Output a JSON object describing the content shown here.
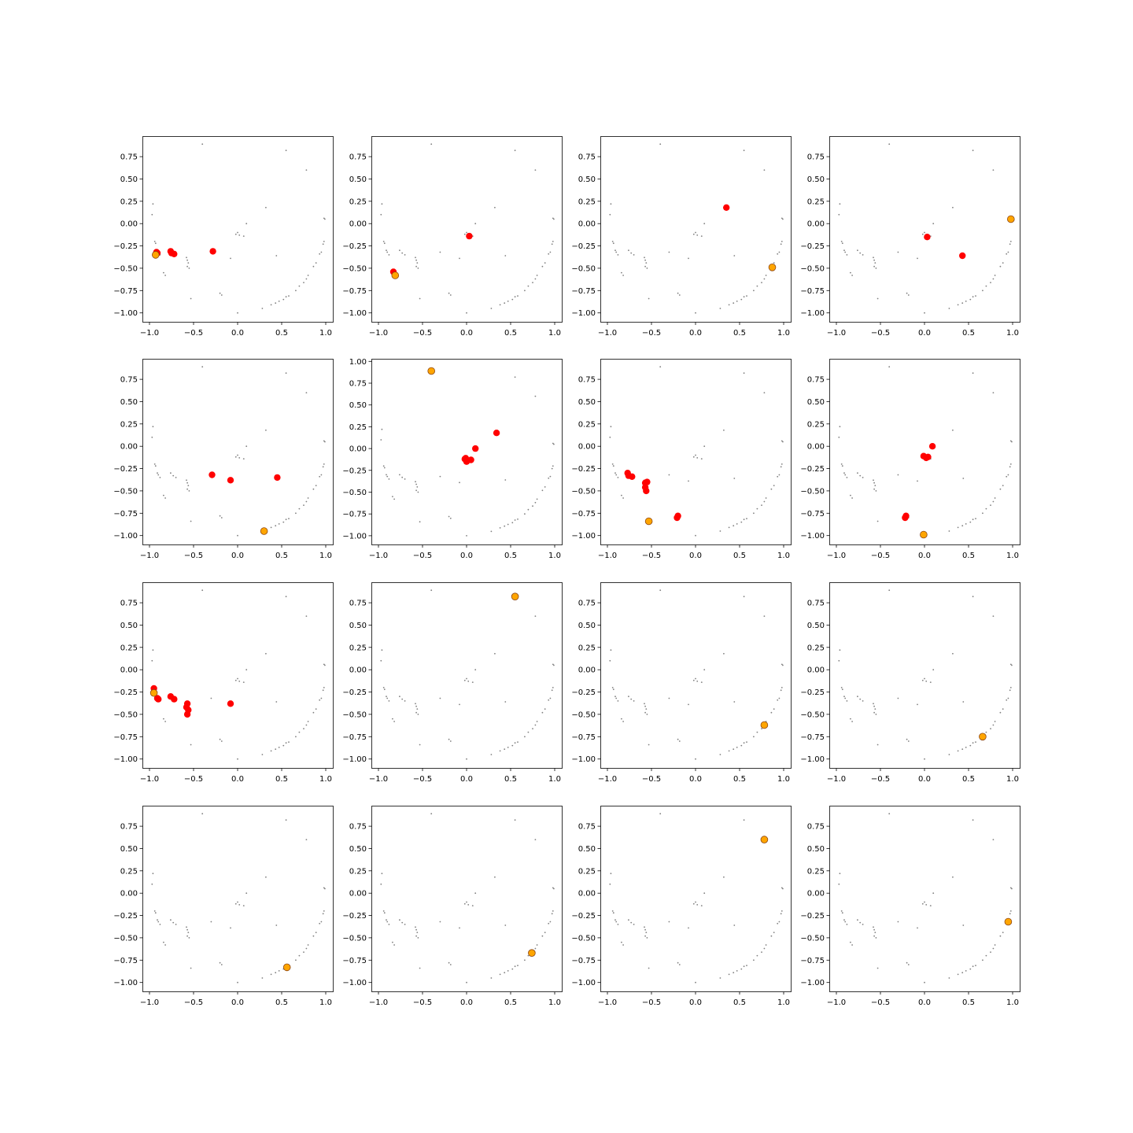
{
  "chart_data": {
    "type": "scatter",
    "grid": false,
    "xlim": [
      -1.08,
      1.08
    ],
    "xticks": [
      {
        "value": -1.0,
        "label": "−1.0"
      },
      {
        "value": -0.5,
        "label": "−0.5"
      },
      {
        "value": 0.0,
        "label": "0.0"
      },
      {
        "value": 0.5,
        "label": "0.5"
      },
      {
        "value": 1.0,
        "label": "1.0"
      }
    ],
    "yticks": [
      {
        "value": -1.0,
        "label": "−1.00"
      },
      {
        "value": -0.75,
        "label": "−0.75"
      },
      {
        "value": -0.5,
        "label": "−0.50"
      },
      {
        "value": -0.25,
        "label": "−0.25"
      },
      {
        "value": 0.0,
        "label": "0.00"
      },
      {
        "value": 0.25,
        "label": "0.25"
      },
      {
        "value": 0.5,
        "label": "0.50"
      },
      {
        "value": 0.75,
        "label": "0.75"
      },
      {
        "value": 1.0,
        "label": "1.00"
      }
    ],
    "colors": {
      "background_points": "#555555",
      "highlight": "#ff0000",
      "target": "#ffa500",
      "target_edge": "#8b4513"
    },
    "background_points": [
      [
        -0.4,
        0.89
      ],
      [
        0.55,
        0.82
      ],
      [
        0.78,
        0.6
      ],
      [
        0.99,
        0.05
      ],
      [
        0.98,
        0.06
      ],
      [
        -0.96,
        0.22
      ],
      [
        -0.97,
        0.1
      ],
      [
        0.32,
        0.18
      ],
      [
        0.1,
        0.0
      ],
      [
        0.0,
        -0.1
      ],
      [
        0.02,
        -0.13
      ],
      [
        -0.02,
        -0.12
      ],
      [
        0.07,
        -0.14
      ],
      [
        -0.3,
        -0.32
      ],
      [
        -0.08,
        -0.39
      ],
      [
        0.44,
        -0.36
      ],
      [
        -0.94,
        -0.2
      ],
      [
        -0.93,
        -0.22
      ],
      [
        -0.91,
        -0.3
      ],
      [
        -0.88,
        -0.35
      ],
      [
        -0.9,
        -0.32
      ],
      [
        -0.76,
        -0.3
      ],
      [
        -0.73,
        -0.33
      ],
      [
        -0.7,
        -0.35
      ],
      [
        -0.58,
        -0.38
      ],
      [
        -0.57,
        -0.41
      ],
      [
        -0.56,
        -0.44
      ],
      [
        -0.57,
        -0.48
      ],
      [
        -0.55,
        -0.5
      ],
      [
        -0.84,
        -0.55
      ],
      [
        -0.82,
        -0.58
      ],
      [
        -0.53,
        -0.84
      ],
      [
        -0.2,
        -0.78
      ],
      [
        -0.18,
        -0.8
      ],
      [
        0.0,
        -1.0
      ],
      [
        0.28,
        -0.95
      ],
      [
        0.38,
        -0.91
      ],
      [
        0.43,
        -0.89
      ],
      [
        0.47,
        -0.87
      ],
      [
        0.52,
        -0.85
      ],
      [
        0.55,
        -0.82
      ],
      [
        0.58,
        -0.81
      ],
      [
        0.66,
        -0.75
      ],
      [
        0.7,
        -0.7
      ],
      [
        0.75,
        -0.66
      ],
      [
        0.78,
        -0.62
      ],
      [
        0.8,
        -0.58
      ],
      [
        0.86,
        -0.48
      ],
      [
        0.89,
        -0.44
      ],
      [
        0.93,
        -0.34
      ],
      [
        0.95,
        -0.32
      ],
      [
        0.97,
        -0.23
      ],
      [
        0.98,
        -0.2
      ]
    ],
    "panels": [
      {
        "ylim": [
          -1.1,
          0.98
        ],
        "highlight": [
          [
            -0.91,
            -0.33
          ],
          [
            -0.92,
            -0.32
          ],
          [
            -0.76,
            -0.31
          ],
          [
            -0.72,
            -0.34
          ],
          [
            -0.75,
            -0.33
          ],
          [
            -0.28,
            -0.31
          ]
        ],
        "target": [
          [
            -0.93,
            -0.35
          ]
        ]
      },
      {
        "ylim": [
          -1.1,
          0.98
        ],
        "highlight": [
          [
            -0.83,
            -0.54
          ],
          [
            0.03,
            -0.14
          ]
        ],
        "target": [
          [
            -0.81,
            -0.58
          ]
        ]
      },
      {
        "ylim": [
          -1.1,
          0.98
        ],
        "highlight": [
          [
            0.35,
            0.18
          ]
        ],
        "target": [
          [
            0.87,
            -0.49
          ]
        ]
      },
      {
        "ylim": [
          -1.1,
          0.98
        ],
        "highlight": [
          [
            0.03,
            -0.15
          ],
          [
            0.43,
            -0.36
          ]
        ],
        "target": [
          [
            0.98,
            0.05
          ]
        ]
      },
      {
        "ylim": [
          -1.1,
          0.98
        ],
        "highlight": [
          [
            -0.29,
            -0.32
          ],
          [
            -0.08,
            -0.38
          ],
          [
            0.45,
            -0.35
          ]
        ],
        "target": [
          [
            0.3,
            -0.95
          ]
        ]
      },
      {
        "ylim": [
          -1.1,
          1.03
        ],
        "highlight": [
          [
            0.34,
            0.18
          ],
          [
            0.1,
            0.0
          ],
          [
            -0.02,
            -0.12
          ],
          [
            0.0,
            -0.15
          ],
          [
            0.05,
            -0.13
          ],
          [
            -0.01,
            -0.11
          ]
        ],
        "target": [
          [
            -0.4,
            0.89
          ]
        ]
      },
      {
        "ylim": [
          -1.1,
          0.98
        ],
        "highlight": [
          [
            -0.77,
            -0.3
          ],
          [
            -0.76,
            -0.33
          ],
          [
            -0.72,
            -0.34
          ],
          [
            -0.57,
            -0.41
          ],
          [
            -0.55,
            -0.4
          ],
          [
            -0.57,
            -0.46
          ],
          [
            -0.56,
            -0.5
          ],
          [
            -0.2,
            -0.78
          ],
          [
            -0.21,
            -0.8
          ]
        ],
        "target": [
          [
            -0.53,
            -0.84
          ]
        ]
      },
      {
        "ylim": [
          -1.1,
          0.98
        ],
        "highlight": [
          [
            0.09,
            0.0
          ],
          [
            -0.01,
            -0.11
          ],
          [
            0.02,
            -0.13
          ],
          [
            0.04,
            -0.12
          ],
          [
            -0.21,
            -0.78
          ],
          [
            -0.22,
            -0.8
          ]
        ],
        "target": [
          [
            -0.01,
            -0.99
          ]
        ]
      },
      {
        "ylim": [
          -1.1,
          0.98
        ],
        "highlight": [
          [
            -0.95,
            -0.21
          ],
          [
            -0.95,
            -0.26
          ],
          [
            -0.91,
            -0.32
          ],
          [
            -0.9,
            -0.33
          ],
          [
            -0.76,
            -0.3
          ],
          [
            -0.72,
            -0.33
          ],
          [
            -0.57,
            -0.38
          ],
          [
            -0.58,
            -0.42
          ],
          [
            -0.56,
            -0.45
          ],
          [
            -0.57,
            -0.5
          ],
          [
            -0.08,
            -0.38
          ]
        ],
        "target": [
          [
            -0.95,
            -0.26
          ]
        ]
      },
      {
        "ylim": [
          -1.1,
          0.98
        ],
        "highlight": [],
        "target": [
          [
            0.55,
            0.82
          ]
        ]
      },
      {
        "ylim": [
          -1.1,
          0.98
        ],
        "highlight": [],
        "target": [
          [
            0.78,
            -0.62
          ]
        ]
      },
      {
        "ylim": [
          -1.1,
          0.98
        ],
        "highlight": [],
        "target": [
          [
            0.66,
            -0.75
          ]
        ]
      },
      {
        "ylim": [
          -1.1,
          0.98
        ],
        "highlight": [],
        "target": [
          [
            0.56,
            -0.83
          ]
        ]
      },
      {
        "ylim": [
          -1.1,
          0.98
        ],
        "highlight": [],
        "target": [
          [
            0.74,
            -0.67
          ]
        ]
      },
      {
        "ylim": [
          -1.1,
          0.98
        ],
        "highlight": [],
        "target": [
          [
            0.78,
            0.6
          ]
        ]
      },
      {
        "ylim": [
          -1.1,
          0.98
        ],
        "highlight": [],
        "target": [
          [
            0.95,
            -0.32
          ]
        ]
      }
    ]
  }
}
